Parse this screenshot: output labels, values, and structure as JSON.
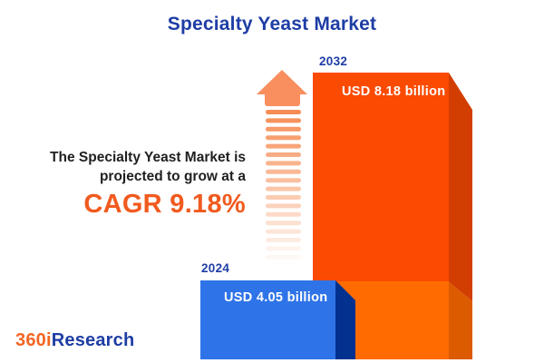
{
  "title": "Specialty Yeast Market",
  "description": {
    "line1": "The Specialty Yeast Market is",
    "line2": "projected to grow at a",
    "cagr": "CAGR 9.18%"
  },
  "chart_data": {
    "type": "bar",
    "title": "Specialty Yeast Market",
    "categories": [
      "2024",
      "2032"
    ],
    "values": [
      4.05,
      8.18
    ],
    "unit": "USD billion",
    "value_labels": [
      "USD 4.05 billion",
      "USD 8.18 billion"
    ],
    "cagr_percent": 9.18,
    "annotation": "The Specialty Yeast Market is projected to grow at a CAGR 9.18%",
    "axes": "none",
    "grid": false,
    "legend": "none",
    "style": "3d-infographic-columns-with-growth-arrow"
  },
  "bars": {
    "b2024": {
      "year": "2024",
      "label": "USD 4.05 billion"
    },
    "b2032": {
      "year": "2032",
      "label": "USD 8.18 billion"
    }
  },
  "logo": {
    "part1": "360i",
    "part2": "Research"
  },
  "colors": {
    "title_blue": "#1e3da5",
    "text_dark": "#1f1f1f",
    "cagr_orange": "#f15a1e",
    "logo_orange": "#f26522",
    "bar2024_front": "#2e74e8",
    "bar2024_side": "#03318f",
    "bar2032_front_top": "#fb4a01",
    "bar2032_front_bottom": "#ff6b00",
    "bar2032_side_top": "#d23e02",
    "bar2032_side_bottom": "#dd5b00",
    "arrow_head": "#f98e5e",
    "arrow_stripe": "#f5864b",
    "value_text": "#ffffff",
    "background": "#ffffff"
  },
  "arrow": {
    "stripe_count": 18
  }
}
